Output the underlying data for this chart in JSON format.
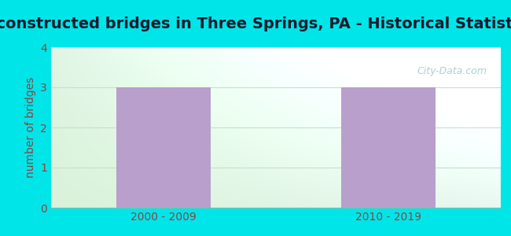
{
  "title": "Reconstructed bridges in Three Springs, PA - Historical Statistics",
  "categories": [
    "2000 - 2009",
    "2010 - 2019"
  ],
  "values": [
    3,
    3
  ],
  "bar_color": "#b89fcc",
  "ylabel": "number of bridges",
  "ylim": [
    0,
    4
  ],
  "yticks": [
    0,
    1,
    2,
    3,
    4
  ],
  "background_outer": "#00e5e8",
  "bg_color_left": "#d8f0d8",
  "bg_color_right": "#e8f4f8",
  "grid_color": "#c8dfc8",
  "title_fontsize": 14,
  "ylabel_fontsize": 10,
  "ylabel_color": "#884444",
  "tick_color": "#884444",
  "title_color": "#1a1a2e",
  "watermark": "City-Data.com",
  "watermark_color": "#a0c8d0"
}
